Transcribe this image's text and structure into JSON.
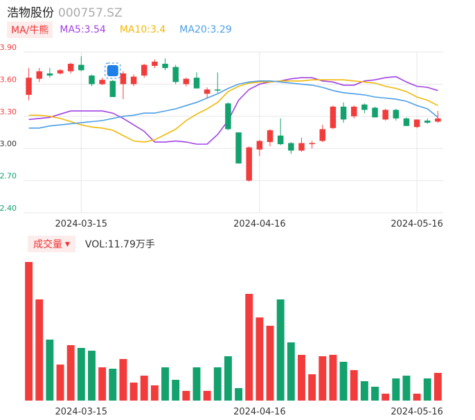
{
  "header": {
    "name": "浩物股份",
    "code": "000757.SZ"
  },
  "legend": {
    "toggle_label": "MA/牛熊",
    "ma5": "MA5:3.54",
    "ma10": "MA10:3.4",
    "ma20": "MA20:3.29"
  },
  "volume_legend": {
    "toggle_label": "成交量",
    "value": "VOL:11.79万手"
  },
  "colors": {
    "up": "#f23c3c",
    "down": "#13a16d",
    "ma5": "#a040e6",
    "ma10": "#f2b705",
    "ma20": "#4a9ee8",
    "grid": "#e6e6e6"
  },
  "icons": {
    "marker": "event-badge-icon",
    "dropdown": "caret-down-icon"
  },
  "chart_data": {
    "type": "candlestick",
    "y_ticks": [
      "3.90",
      "3.60",
      "3.30",
      "3.00",
      "2.70",
      "2.40"
    ],
    "ylim": [
      2.4,
      3.9
    ],
    "x_tick_labels": [
      {
        "index": 5,
        "label": "2024-03-15"
      },
      {
        "index": 22,
        "label": "2024-04-16"
      },
      {
        "index": 37,
        "label": "2024-05-16"
      }
    ],
    "candles": [
      {
        "o": 3.5,
        "c": 3.66,
        "h": 3.75,
        "l": 3.45
      },
      {
        "o": 3.65,
        "c": 3.72,
        "h": 3.75,
        "l": 3.62
      },
      {
        "o": 3.7,
        "c": 3.68,
        "h": 3.75,
        "l": 3.66
      },
      {
        "o": 3.7,
        "c": 3.73,
        "h": 3.74,
        "l": 3.69
      },
      {
        "o": 3.72,
        "c": 3.79,
        "h": 3.8,
        "l": 3.7
      },
      {
        "o": 3.78,
        "c": 3.73,
        "h": 3.86,
        "l": 3.72
      },
      {
        "o": 3.68,
        "c": 3.6,
        "h": 3.69,
        "l": 3.58
      },
      {
        "o": 3.6,
        "c": 3.64,
        "h": 3.66,
        "l": 3.59
      },
      {
        "o": 3.63,
        "c": 3.48,
        "h": 3.64,
        "l": 3.48
      },
      {
        "o": 3.6,
        "c": 3.7,
        "h": 3.72,
        "l": 3.46
      },
      {
        "o": 3.6,
        "c": 3.67,
        "h": 3.69,
        "l": 3.58
      },
      {
        "o": 3.68,
        "c": 3.78,
        "h": 3.79,
        "l": 3.66
      },
      {
        "o": 3.77,
        "c": 3.81,
        "h": 3.83,
        "l": 3.75
      },
      {
        "o": 3.79,
        "c": 3.75,
        "h": 3.84,
        "l": 3.73
      },
      {
        "o": 3.76,
        "c": 3.62,
        "h": 3.78,
        "l": 3.6
      },
      {
        "o": 3.6,
        "c": 3.65,
        "h": 3.66,
        "l": 3.58
      },
      {
        "o": 3.66,
        "c": 3.56,
        "h": 3.71,
        "l": 3.56
      },
      {
        "o": 3.51,
        "c": 3.55,
        "h": 3.57,
        "l": 3.47
      },
      {
        "o": 3.55,
        "c": 3.54,
        "h": 3.71,
        "l": 3.52
      },
      {
        "o": 3.42,
        "c": 3.18,
        "h": 3.43,
        "l": 3.17
      },
      {
        "o": 3.15,
        "c": 2.86,
        "h": 3.15,
        "l": 2.86
      },
      {
        "o": 2.7,
        "c": 3.01,
        "h": 3.02,
        "l": 2.69
      },
      {
        "o": 2.99,
        "c": 3.07,
        "h": 3.08,
        "l": 2.93
      },
      {
        "o": 3.06,
        "c": 3.17,
        "h": 3.18,
        "l": 3.02
      },
      {
        "o": 3.12,
        "c": 3.04,
        "h": 3.28,
        "l": 3.03
      },
      {
        "o": 3.05,
        "c": 2.98,
        "h": 3.06,
        "l": 2.95
      },
      {
        "o": 2.98,
        "c": 3.05,
        "h": 3.1,
        "l": 2.97
      },
      {
        "o": 3.04,
        "c": 3.05,
        "h": 3.07,
        "l": 3.0
      },
      {
        "o": 3.07,
        "c": 3.18,
        "h": 3.22,
        "l": 3.06
      },
      {
        "o": 3.19,
        "c": 3.39,
        "h": 3.4,
        "l": 3.18
      },
      {
        "o": 3.39,
        "c": 3.27,
        "h": 3.43,
        "l": 3.24
      },
      {
        "o": 3.3,
        "c": 3.39,
        "h": 3.4,
        "l": 3.28
      },
      {
        "o": 3.41,
        "c": 3.36,
        "h": 3.42,
        "l": 3.33
      },
      {
        "o": 3.38,
        "c": 3.29,
        "h": 3.39,
        "l": 3.29
      },
      {
        "o": 3.27,
        "c": 3.36,
        "h": 3.37,
        "l": 3.26
      },
      {
        "o": 3.36,
        "c": 3.28,
        "h": 3.37,
        "l": 3.26
      },
      {
        "o": 3.28,
        "c": 3.21,
        "h": 3.29,
        "l": 3.21
      },
      {
        "o": 3.2,
        "c": 3.27,
        "h": 3.27,
        "l": 3.19
      },
      {
        "o": 3.26,
        "c": 3.24,
        "h": 3.28,
        "l": 3.23
      },
      {
        "o": 3.25,
        "c": 3.28,
        "h": 3.35,
        "l": 3.24
      }
    ],
    "series": [
      {
        "name": "MA5",
        "values": [
          3.27,
          3.28,
          3.29,
          3.32,
          3.35,
          3.35,
          3.35,
          3.35,
          3.33,
          3.28,
          3.22,
          3.16,
          3.06,
          3.06,
          3.07,
          3.06,
          3.04,
          3.04,
          3.13,
          3.26,
          3.45,
          3.55,
          3.6,
          3.62,
          3.63,
          3.65,
          3.66,
          3.66,
          3.63,
          3.62,
          3.59,
          3.59,
          3.63,
          3.64,
          3.66,
          3.67,
          3.62,
          3.58,
          3.57,
          3.54
        ]
      },
      {
        "name": "MA10",
        "values": [
          3.31,
          3.31,
          3.3,
          3.28,
          3.25,
          3.22,
          3.2,
          3.19,
          3.17,
          3.12,
          3.07,
          3.06,
          3.08,
          3.13,
          3.18,
          3.26,
          3.32,
          3.37,
          3.43,
          3.53,
          3.58,
          3.61,
          3.62,
          3.62,
          3.63,
          3.63,
          3.63,
          3.64,
          3.64,
          3.64,
          3.64,
          3.63,
          3.62,
          3.61,
          3.58,
          3.56,
          3.53,
          3.48,
          3.45,
          3.4
        ]
      },
      {
        "name": "MA20",
        "values": [
          3.19,
          3.19,
          3.21,
          3.22,
          3.23,
          3.24,
          3.25,
          3.26,
          3.28,
          3.3,
          3.31,
          3.33,
          3.33,
          3.35,
          3.37,
          3.4,
          3.43,
          3.47,
          3.51,
          3.56,
          3.6,
          3.62,
          3.63,
          3.63,
          3.62,
          3.61,
          3.6,
          3.59,
          3.57,
          3.54,
          3.52,
          3.51,
          3.5,
          3.48,
          3.47,
          3.46,
          3.44,
          3.4,
          3.37,
          3.29
        ]
      }
    ],
    "volume": {
      "values": [
        100,
        73,
        44,
        26,
        40,
        38,
        36,
        24,
        23,
        30,
        13,
        18,
        11,
        24,
        15,
        7,
        24,
        7,
        24,
        32,
        9,
        77,
        60,
        54,
        73,
        42,
        33,
        19,
        32,
        33,
        28,
        22,
        14,
        10,
        5,
        16,
        18,
        5,
        16,
        20
      ]
    }
  }
}
